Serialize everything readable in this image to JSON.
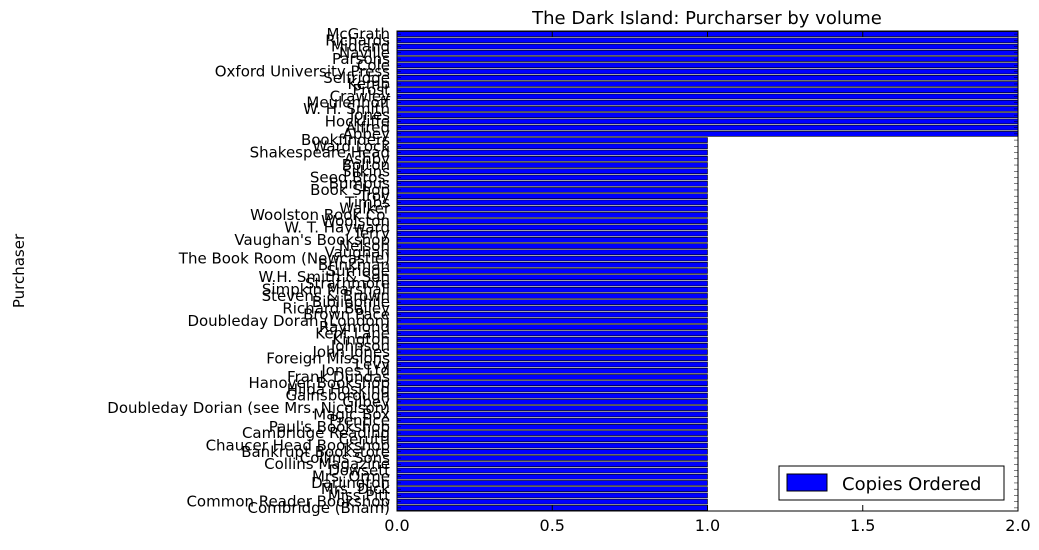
{
  "chart_data": {
    "type": "bar",
    "orientation": "horizontal",
    "title": "The Dark Island: Purcharser by volume",
    "xlabel": "",
    "ylabel": "Purchaser",
    "xlim": [
      0,
      2
    ],
    "xticks": [
      "0.0",
      "0.5",
      "1.0",
      "1.5",
      "2.0"
    ],
    "grid": false,
    "legend_position": "lower-right",
    "categories": [
      "Combridge (Bnam)",
      "Common Reader Bookshop",
      "Miss Pitt",
      "Mrs. Dick",
      "Darlington",
      "Mrs. Orme",
      "Dowsett",
      "Collins Magazine",
      "Collins Sons",
      "Bankrupt Bookstore",
      "Chaucer Head Bookshop",
      "Cerutti",
      "Cambridge Reading",
      "Paul's Bookshop",
      "Prentice",
      "Magic Box",
      "Doubleday Dorian (see Mrs. Nicolson)",
      "Gilbey",
      "Gainsborough",
      "Hilda Hosking",
      "Hanover Bookshop",
      "Frank Dundas",
      "Jones Ltd",
      "Levy",
      "Foreign Missions",
      "John Jones",
      "Johnson",
      "Kington",
      "Kent Lane",
      "Raymond",
      "Doubleday Doran (London)",
      "Brown Pace",
      "Richard Bailey",
      "Bibliophile",
      "Stevens & Brown",
      "Simpkin Marshall",
      "Strathmore",
      "W.H. Smith & Son",
      "Surridge",
      "Brinkman",
      "The Book Room (Newcastle)",
      "Vaughan",
      "Nelson",
      "Vaughan's Bookshop",
      "Terry",
      "W. T. Hayward",
      "Woolston",
      "Woolston Book Co.",
      "Walker",
      "Timbs",
      "Troy",
      "Book Shop",
      "Bumpus",
      "Seed Bros.",
      "Silkins",
      "Bolton",
      "Ashby",
      "Shakespeare Head",
      "Ward Lock",
      "Bookfinders",
      "Abbey",
      "Alfred",
      "Hockliffe",
      "Jones",
      "W. H. Smith",
      "Meulenhoff",
      "Crawley",
      "Prost",
      "Kemp",
      "Selfridge",
      "Oxford University Press",
      "Cole",
      "Parsons",
      "Naville",
      "Midland",
      "Richards",
      "McGrath"
    ],
    "series": [
      {
        "name": "Copies Ordered",
        "color": "#0000ff",
        "values": [
          1,
          1,
          1,
          1,
          1,
          1,
          1,
          1,
          1,
          1,
          1,
          1,
          1,
          1,
          1,
          1,
          1,
          1,
          1,
          1,
          1,
          1,
          1,
          1,
          1,
          1,
          1,
          1,
          1,
          1,
          1,
          1,
          1,
          1,
          1,
          1,
          1,
          1,
          1,
          1,
          1,
          1,
          1,
          1,
          1,
          1,
          1,
          1,
          1,
          1,
          1,
          1,
          1,
          1,
          1,
          1,
          1,
          1,
          1,
          1,
          2,
          2,
          2,
          2,
          2,
          2,
          2,
          2,
          2,
          2,
          2,
          2,
          2,
          2,
          2,
          2,
          2
        ]
      }
    ]
  }
}
